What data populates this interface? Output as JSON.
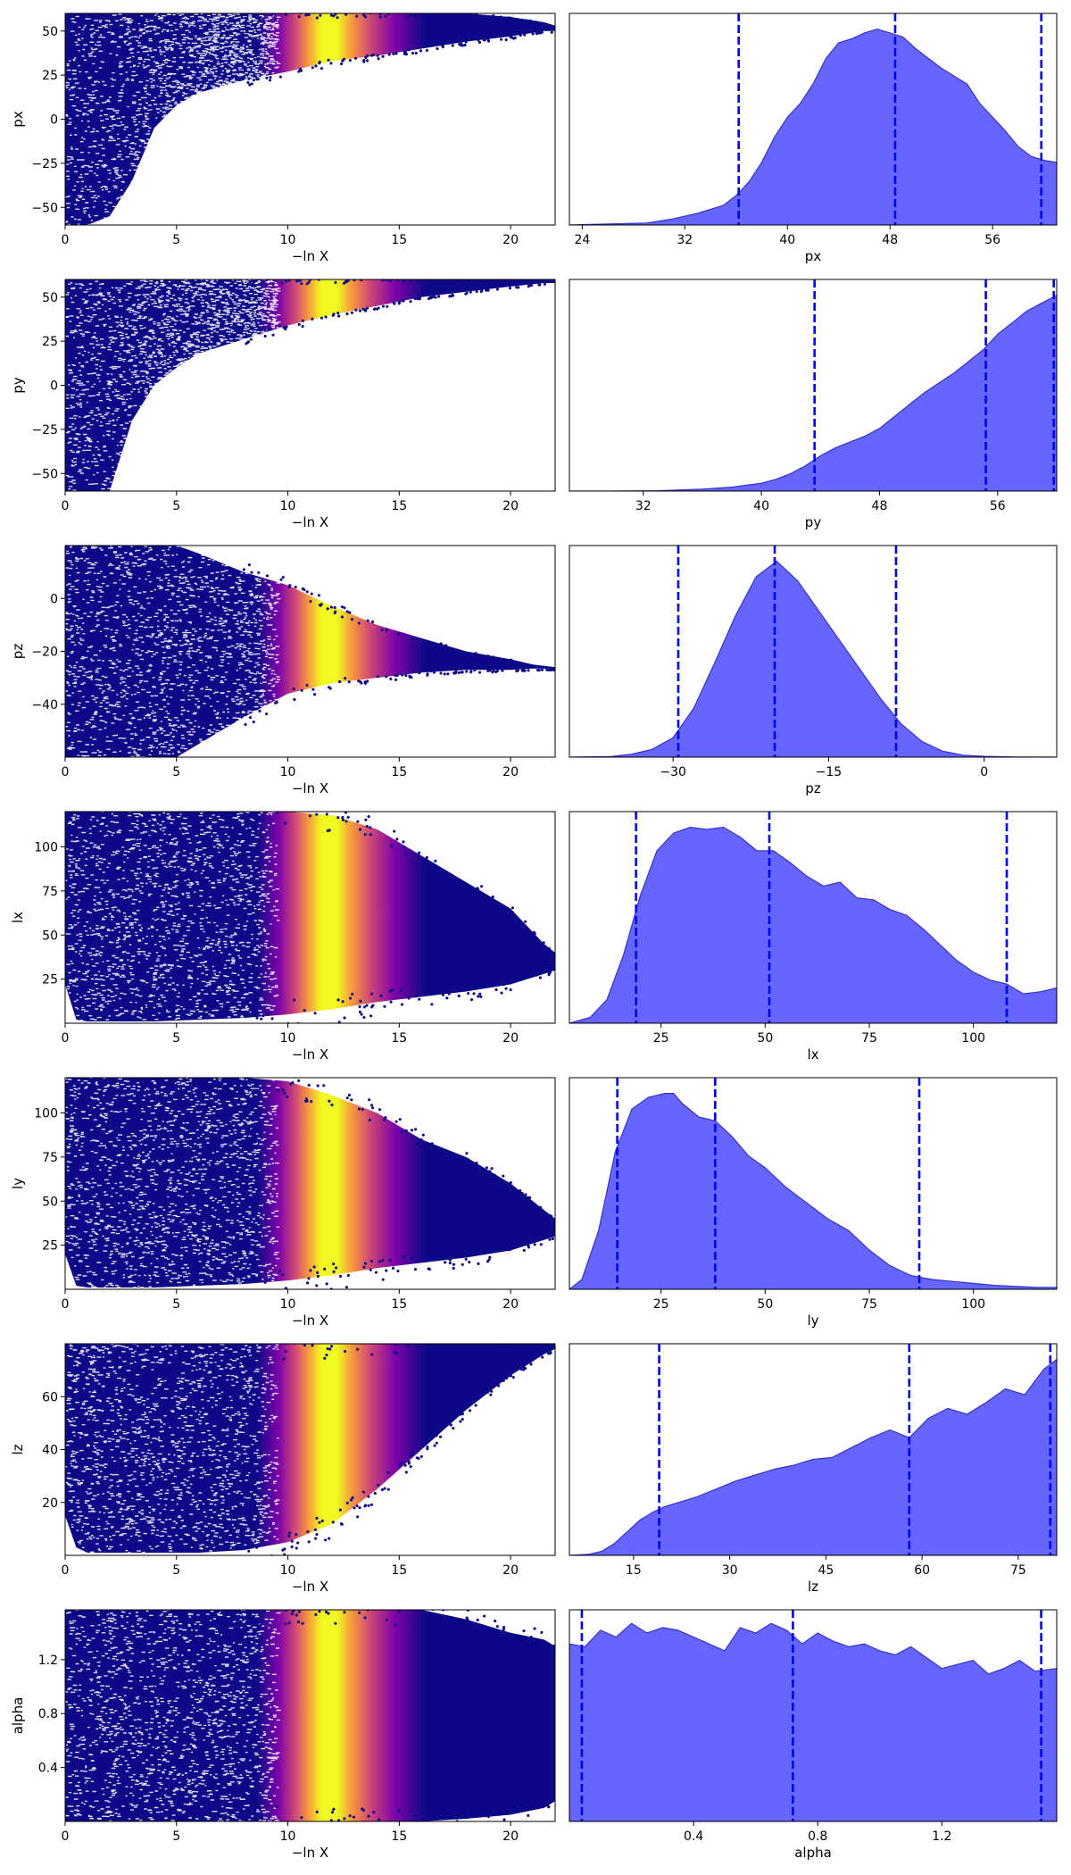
{
  "colors": {
    "kde_fill": "#6666ff",
    "kde_line": "#3333cc",
    "vline": "#0000ee",
    "cmap": [
      "#0d0887",
      "#7e03a8",
      "#cc4778",
      "#f89540",
      "#f0f921"
    ]
  },
  "chart_data": [
    {
      "type": "scatter",
      "param": "px",
      "xlabel": "−ln X",
      "ylabel": "px",
      "xlim": [
        0,
        22
      ],
      "ylim": [
        -60,
        60
      ],
      "xticks": [
        "0",
        "5",
        "10",
        "15",
        "20"
      ],
      "xtick_values": [
        0,
        5,
        10,
        15,
        20
      ],
      "yticks": [
        "−50",
        "−25",
        "0",
        "25",
        "50"
      ],
      "ytick_values": [
        -50,
        -25,
        0,
        25,
        50
      ],
      "envelope": {
        "x": [
          0,
          1,
          2,
          3,
          4,
          5,
          6,
          8,
          10,
          12,
          14,
          16,
          18,
          20,
          21.5,
          22
        ],
        "ymin": [
          -60,
          -60,
          -55,
          -35,
          -5,
          8,
          15,
          22,
          27,
          33,
          36,
          40,
          44,
          47,
          50,
          50
        ],
        "ymax": [
          60,
          60,
          60,
          60,
          60,
          60,
          60,
          60,
          60,
          60,
          60,
          60,
          60,
          58,
          55,
          53
        ]
      }
    },
    {
      "type": "area",
      "param": "px",
      "xlabel": "px",
      "xlim": [
        23,
        61
      ],
      "ylim": [
        0,
        1.08
      ],
      "xticks": [
        "24",
        "32",
        "40",
        "48",
        "56"
      ],
      "xtick_values": [
        24,
        32,
        40,
        48,
        56
      ],
      "quantiles": [
        36.2,
        48.4,
        59.8
      ],
      "x": [
        23,
        26,
        29,
        31,
        33,
        35,
        36,
        37,
        38,
        39,
        40,
        41,
        42,
        43,
        44,
        45,
        46,
        47,
        48,
        49,
        50,
        51,
        52,
        53,
        54,
        55,
        56,
        57,
        58,
        59,
        60,
        61
      ],
      "y": [
        0,
        0.005,
        0.01,
        0.03,
        0.06,
        0.1,
        0.15,
        0.22,
        0.32,
        0.45,
        0.55,
        0.62,
        0.72,
        0.85,
        0.93,
        0.95,
        0.98,
        1.0,
        0.98,
        0.96,
        0.9,
        0.85,
        0.8,
        0.76,
        0.72,
        0.62,
        0.55,
        0.48,
        0.4,
        0.35,
        0.33,
        0.32
      ]
    },
    {
      "type": "scatter",
      "param": "py",
      "xlabel": "−ln X",
      "ylabel": "py",
      "xlim": [
        0,
        22
      ],
      "ylim": [
        -60,
        60
      ],
      "xticks": [
        "0",
        "5",
        "10",
        "15",
        "20"
      ],
      "xtick_values": [
        0,
        5,
        10,
        15,
        20
      ],
      "yticks": [
        "−50",
        "−25",
        "0",
        "25",
        "50"
      ],
      "ytick_values": [
        -50,
        -25,
        0,
        25,
        50
      ],
      "envelope": {
        "x": [
          0,
          1,
          2,
          2.5,
          3,
          4,
          5,
          6,
          8,
          10,
          12,
          14,
          16,
          18,
          20,
          21.5,
          22
        ],
        "ymin": [
          -60,
          -60,
          -60,
          -40,
          -20,
          0,
          10,
          18,
          26,
          34,
          40,
          45,
          50,
          53,
          56,
          58,
          58
        ],
        "ymax": [
          60,
          60,
          60,
          60,
          60,
          60,
          60,
          60,
          60,
          60,
          60,
          60,
          60,
          60,
          60,
          60,
          60
        ]
      }
    },
    {
      "type": "area",
      "param": "py",
      "xlabel": "py",
      "xlim": [
        27,
        60
      ],
      "ylim": [
        0,
        1.08
      ],
      "xticks": [
        "32",
        "40",
        "48",
        "56"
      ],
      "xtick_values": [
        32,
        40,
        48,
        56
      ],
      "quantiles": [
        43.6,
        55.2,
        59.8
      ],
      "x": [
        27,
        30,
        33,
        36,
        38,
        40,
        41,
        42,
        43,
        44,
        45,
        46,
        47,
        48,
        49,
        50,
        51,
        52,
        53,
        54,
        55,
        56,
        57,
        58,
        59,
        60
      ],
      "y": [
        0,
        0,
        0.002,
        0.01,
        0.02,
        0.04,
        0.06,
        0.09,
        0.13,
        0.18,
        0.22,
        0.25,
        0.28,
        0.32,
        0.38,
        0.44,
        0.5,
        0.55,
        0.6,
        0.66,
        0.72,
        0.8,
        0.86,
        0.92,
        0.96,
        1.0
      ]
    },
    {
      "type": "scatter",
      "param": "pz",
      "xlabel": "−ln X",
      "ylabel": "pz",
      "xlim": [
        0,
        22
      ],
      "ylim": [
        -60,
        20
      ],
      "xticks": [
        "0",
        "5",
        "10",
        "15",
        "20"
      ],
      "xtick_values": [
        0,
        5,
        10,
        15,
        20
      ],
      "yticks": [
        "−40",
        "−20",
        "0"
      ],
      "ytick_values": [
        -40,
        -20,
        0
      ],
      "envelope": {
        "x": [
          0,
          2,
          4,
          5,
          6,
          8,
          10,
          12,
          14,
          16,
          18,
          20,
          21,
          22
        ],
        "ymin": [
          -60,
          -60,
          -60,
          -60,
          -55,
          -45,
          -36,
          -32,
          -30,
          -28,
          -27,
          -27,
          -26.5,
          -26.5
        ],
        "ymax": [
          20,
          20,
          20,
          20,
          17,
          10,
          5,
          -3,
          -10,
          -15,
          -20,
          -23,
          -25,
          -26
        ]
      }
    },
    {
      "type": "area",
      "param": "pz",
      "xlabel": "pz",
      "xlim": [
        -40,
        7
      ],
      "ylim": [
        0,
        1.08
      ],
      "xticks": [
        "−30",
        "−15",
        "0"
      ],
      "xtick_values": [
        -30,
        -15,
        0
      ],
      "quantiles": [
        -29.5,
        -20.2,
        -8.5
      ],
      "x": [
        -40,
        -36,
        -34,
        -32,
        -30,
        -28,
        -26,
        -24,
        -22,
        -20,
        -18,
        -16,
        -14,
        -12,
        -10,
        -8,
        -6,
        -4,
        -2,
        0,
        3,
        7
      ],
      "y": [
        0,
        0.003,
        0.015,
        0.04,
        0.1,
        0.25,
        0.48,
        0.72,
        0.92,
        1.0,
        0.9,
        0.75,
        0.6,
        0.45,
        0.3,
        0.17,
        0.08,
        0.03,
        0.01,
        0.004,
        0.001,
        0
      ]
    },
    {
      "type": "scatter",
      "param": "lx",
      "xlabel": "−ln X",
      "ylabel": "lx",
      "xlim": [
        0,
        22
      ],
      "ylim": [
        0,
        120
      ],
      "xticks": [
        "0",
        "5",
        "10",
        "15",
        "20"
      ],
      "xtick_values": [
        0,
        5,
        10,
        15,
        20
      ],
      "yticks": [
        "25",
        "50",
        "75",
        "100"
      ],
      "ytick_values": [
        25,
        50,
        75,
        100
      ],
      "envelope": {
        "x": [
          0,
          0.5,
          1,
          2,
          4,
          6,
          8,
          10,
          12,
          14,
          16,
          18,
          20,
          21.5,
          22
        ],
        "ymin": [
          22,
          2,
          1,
          1,
          1,
          2,
          3,
          5,
          8,
          12,
          15,
          18,
          22,
          28,
          30
        ],
        "ymax": [
          120,
          120,
          120,
          120,
          120,
          120,
          120,
          120,
          118,
          110,
          95,
          80,
          65,
          45,
          40
        ]
      }
    },
    {
      "type": "area",
      "param": "lx",
      "xlabel": "lx",
      "xlim": [
        3,
        120
      ],
      "ylim": [
        0,
        1.08
      ],
      "xticks": [
        "25",
        "50",
        "75",
        "100"
      ],
      "xtick_values": [
        25,
        50,
        75,
        100
      ],
      "quantiles": [
        19,
        51,
        108
      ],
      "x": [
        3,
        8,
        12,
        16,
        20,
        24,
        28,
        32,
        36,
        40,
        44,
        48,
        52,
        56,
        60,
        64,
        68,
        72,
        76,
        80,
        84,
        88,
        92,
        96,
        100,
        104,
        108,
        112,
        116,
        120
      ],
      "y": [
        0,
        0.03,
        0.12,
        0.35,
        0.65,
        0.88,
        0.97,
        1.0,
        0.99,
        1.0,
        0.95,
        0.88,
        0.88,
        0.82,
        0.75,
        0.7,
        0.72,
        0.64,
        0.63,
        0.58,
        0.55,
        0.48,
        0.4,
        0.32,
        0.26,
        0.22,
        0.2,
        0.15,
        0.16,
        0.18
      ]
    },
    {
      "type": "scatter",
      "param": "ly",
      "xlabel": "−ln X",
      "ylabel": "ly",
      "xlim": [
        0,
        22
      ],
      "ylim": [
        0,
        120
      ],
      "xticks": [
        "0",
        "5",
        "10",
        "15",
        "20"
      ],
      "xtick_values": [
        0,
        5,
        10,
        15,
        20
      ],
      "yticks": [
        "25",
        "50",
        "75",
        "100"
      ],
      "ytick_values": [
        25,
        50,
        75,
        100
      ],
      "envelope": {
        "x": [
          0,
          0.5,
          1,
          2,
          4,
          6,
          8,
          10,
          12,
          14,
          16,
          18,
          20,
          21.5,
          22
        ],
        "ymin": [
          20,
          2,
          1,
          1,
          1,
          2,
          3,
          5,
          8,
          12,
          15,
          18,
          22,
          28,
          30
        ],
        "ymax": [
          120,
          120,
          120,
          120,
          120,
          120,
          120,
          118,
          110,
          100,
          85,
          75,
          60,
          45,
          40
        ]
      }
    },
    {
      "type": "area",
      "param": "ly",
      "xlabel": "ly",
      "xlim": [
        3,
        120
      ],
      "ylim": [
        0,
        1.08
      ],
      "xticks": [
        "25",
        "50",
        "75",
        "100"
      ],
      "xtick_values": [
        25,
        50,
        75,
        100
      ],
      "quantiles": [
        14.5,
        38,
        87
      ],
      "x": [
        3,
        6,
        10,
        14,
        18,
        22,
        26,
        28,
        30,
        34,
        38,
        42,
        46,
        50,
        55,
        60,
        65,
        70,
        75,
        80,
        85,
        90,
        95,
        100,
        105,
        110,
        115,
        120
      ],
      "y": [
        0,
        0.05,
        0.3,
        0.7,
        0.92,
        0.98,
        1.0,
        1.0,
        0.95,
        0.88,
        0.86,
        0.78,
        0.68,
        0.62,
        0.52,
        0.44,
        0.36,
        0.3,
        0.2,
        0.12,
        0.07,
        0.05,
        0.04,
        0.03,
        0.02,
        0.015,
        0.01,
        0.01
      ]
    },
    {
      "type": "scatter",
      "param": "lz",
      "xlabel": "−ln X",
      "ylabel": "lz",
      "xlim": [
        0,
        22
      ],
      "ylim": [
        0,
        80
      ],
      "xticks": [
        "0",
        "5",
        "10",
        "15",
        "20"
      ],
      "xtick_values": [
        0,
        5,
        10,
        15,
        20
      ],
      "yticks": [
        "20",
        "40",
        "60"
      ],
      "ytick_values": [
        20,
        40,
        60
      ],
      "envelope": {
        "x": [
          0,
          0.5,
          1,
          2,
          4,
          6,
          8,
          10,
          12,
          14,
          16,
          18,
          20,
          21.5,
          22
        ],
        "ymin": [
          15,
          3,
          1,
          1,
          1,
          1,
          2,
          5,
          12,
          25,
          40,
          55,
          68,
          76,
          78
        ],
        "ymax": [
          80,
          80,
          80,
          80,
          80,
          80,
          80,
          80,
          80,
          80,
          80,
          80,
          80,
          80,
          80
        ]
      }
    },
    {
      "type": "area",
      "param": "lz",
      "xlabel": "lz",
      "xlim": [
        5,
        81
      ],
      "ylim": [
        0,
        1.08
      ],
      "xticks": [
        "15",
        "30",
        "45",
        "60",
        "75"
      ],
      "xtick_values": [
        15,
        30,
        45,
        60,
        75
      ],
      "quantiles": [
        19,
        58,
        80
      ],
      "x": [
        5,
        8,
        10,
        12,
        14,
        16,
        18,
        20,
        22,
        25,
        28,
        31,
        34,
        37,
        40,
        43,
        46,
        49,
        52,
        55,
        58,
        61,
        64,
        67,
        70,
        73,
        76,
        79,
        81
      ],
      "y": [
        0,
        0.005,
        0.02,
        0.06,
        0.12,
        0.18,
        0.22,
        0.25,
        0.27,
        0.3,
        0.34,
        0.38,
        0.41,
        0.44,
        0.46,
        0.49,
        0.5,
        0.55,
        0.6,
        0.64,
        0.6,
        0.7,
        0.75,
        0.72,
        0.78,
        0.85,
        0.82,
        0.95,
        1.0
      ]
    },
    {
      "type": "scatter",
      "param": "alpha",
      "xlabel": "−ln X",
      "ylabel": "alpha",
      "xlim": [
        0,
        22
      ],
      "ylim": [
        0,
        1.57
      ],
      "xticks": [
        "0",
        "5",
        "10",
        "15",
        "20"
      ],
      "xtick_values": [
        0,
        5,
        10,
        15,
        20
      ],
      "yticks": [
        "0.4",
        "0.8",
        "1.2"
      ],
      "ytick_values": [
        0.4,
        0.8,
        1.2
      ],
      "envelope": {
        "x": [
          0,
          2,
          4,
          6,
          8,
          10,
          12,
          14,
          16,
          18,
          20,
          21.5,
          22
        ],
        "ymin": [
          0,
          0,
          0,
          0,
          0,
          0,
          0,
          0,
          0,
          0.02,
          0.05,
          0.1,
          0.15
        ],
        "ymax": [
          1.57,
          1.57,
          1.57,
          1.57,
          1.57,
          1.57,
          1.57,
          1.57,
          1.57,
          1.5,
          1.4,
          1.35,
          1.3
        ]
      }
    },
    {
      "type": "area",
      "param": "alpha",
      "xlabel": "alpha",
      "xlim": [
        0,
        1.57
      ],
      "ylim": [
        0,
        1.55
      ],
      "xticks": [
        "0.4",
        "0.8",
        "1.2"
      ],
      "xtick_values": [
        0.4,
        0.8,
        1.2
      ],
      "quantiles": [
        0.04,
        0.72,
        1.52
      ],
      "x": [
        0,
        0.05,
        0.1,
        0.15,
        0.2,
        0.25,
        0.3,
        0.35,
        0.4,
        0.45,
        0.5,
        0.55,
        0.6,
        0.65,
        0.7,
        0.75,
        0.8,
        0.85,
        0.9,
        0.95,
        1.0,
        1.05,
        1.1,
        1.15,
        1.2,
        1.25,
        1.3,
        1.35,
        1.4,
        1.45,
        1.5,
        1.57
      ],
      "y": [
        1.3,
        1.28,
        1.4,
        1.35,
        1.45,
        1.38,
        1.42,
        1.4,
        1.35,
        1.3,
        1.25,
        1.42,
        1.38,
        1.45,
        1.4,
        1.3,
        1.38,
        1.32,
        1.28,
        1.3,
        1.25,
        1.22,
        1.28,
        1.2,
        1.12,
        1.15,
        1.18,
        1.08,
        1.12,
        1.18,
        1.1,
        1.12
      ]
    }
  ]
}
